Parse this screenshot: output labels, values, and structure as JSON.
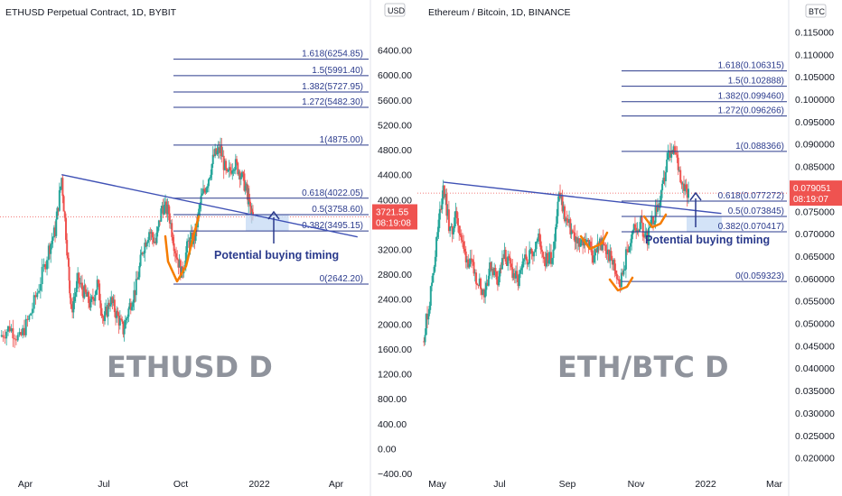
{
  "chart_data": [
    {
      "type": "candlestick",
      "title": "ETHUSD Perpetual Contract, 1D, BYBIT",
      "currency": "USD",
      "watermark": "ETHUSD D",
      "annotation": "Potential buying timing",
      "ylim": [
        -400,
        6800
      ],
      "yticks": [
        -400,
        0,
        400,
        800,
        1200,
        1600,
        2000,
        2400,
        2800,
        3200,
        3600,
        4000,
        4400,
        4800,
        5200,
        5600,
        6000,
        6400
      ],
      "ytick_labels": [
        "−400.00",
        "0.00",
        "400.00",
        "800.00",
        "1200.00",
        "1600.00",
        "2000.00",
        "2400.00",
        "2800.00",
        "3200.00",
        "3600.00",
        "4000.00",
        "4400.00",
        "4800.00",
        "5200.00",
        "5600.00",
        "6000.00",
        "6400.00"
      ],
      "x_labels": [
        "Apr",
        "Jul",
        "Oct",
        "2022",
        "Apr"
      ],
      "current_price": {
        "value": 3721.55,
        "label": "3721.55",
        "timer": "08:19:08",
        "color": "#ef5350"
      },
      "fib_levels": [
        {
          "label": "1.618(6254.85)",
          "value": 6254.85
        },
        {
          "label": "1.5(5991.40)",
          "value": 5991.4
        },
        {
          "label": "1.382(5727.95)",
          "value": 5727.95
        },
        {
          "label": "1.272(5482.30)",
          "value": 5482.3
        },
        {
          "label": "1(4875.00)",
          "value": 4875.0
        },
        {
          "label": "0.618(4022.05)",
          "value": 4022.05
        },
        {
          "label": "0.5(3758.60)",
          "value": 3758.6
        },
        {
          "label": "0.382(3495.15)",
          "value": 3495.15
        },
        {
          "label": "0(2642.20)",
          "value": 2642.2
        }
      ],
      "trendline": [
        [
          0.19,
          4400
        ],
        [
          0.97,
          3400
        ]
      ],
      "price_path": [
        [
          0.0,
          1800
        ],
        [
          0.03,
          1950
        ],
        [
          0.06,
          1750
        ],
        [
          0.09,
          2100
        ],
        [
          0.12,
          2600
        ],
        [
          0.15,
          3200
        ],
        [
          0.17,
          3500
        ],
        [
          0.19,
          4350
        ],
        [
          0.21,
          3000
        ],
        [
          0.22,
          2200
        ],
        [
          0.24,
          2700
        ],
        [
          0.26,
          2500
        ],
        [
          0.28,
          2300
        ],
        [
          0.3,
          2650
        ],
        [
          0.32,
          2050
        ],
        [
          0.34,
          2400
        ],
        [
          0.36,
          2150
        ],
        [
          0.38,
          1900
        ],
        [
          0.4,
          2300
        ],
        [
          0.42,
          2600
        ],
        [
          0.44,
          3200
        ],
        [
          0.46,
          3500
        ],
        [
          0.48,
          3300
        ],
        [
          0.5,
          3900
        ],
        [
          0.52,
          3800
        ],
        [
          0.54,
          3200
        ],
        [
          0.56,
          2800
        ],
        [
          0.58,
          3300
        ],
        [
          0.6,
          3400
        ],
        [
          0.62,
          4000
        ],
        [
          0.64,
          4300
        ],
        [
          0.66,
          4700
        ],
        [
          0.68,
          4800
        ],
        [
          0.7,
          4350
        ],
        [
          0.72,
          4600
        ],
        [
          0.74,
          4450
        ],
        [
          0.76,
          4150
        ],
        [
          0.77,
          3900
        ],
        [
          0.78,
          3720
        ]
      ],
      "colors": {
        "up": "#26a69a",
        "down": "#ef5350",
        "fib": "#2a3a8c",
        "trend": "#3f51b5",
        "curve": "#f57c00",
        "zone": "#c8dcf5"
      }
    },
    {
      "type": "candlestick",
      "title": "Ethereum / Bitcoin, 1D, BINANCE",
      "currency": "BTC",
      "watermark": "ETH/BTC D",
      "annotation": "Potential buying timing",
      "ylim": [
        0.0165,
        0.1165
      ],
      "yticks": [
        0.02,
        0.025,
        0.03,
        0.035,
        0.04,
        0.045,
        0.05,
        0.055,
        0.06,
        0.065,
        0.07,
        0.075,
        0.08,
        0.085,
        0.09,
        0.095,
        0.1,
        0.105,
        0.11,
        0.115
      ],
      "ytick_labels": [
        "0.020000",
        "0.025000",
        "0.030000",
        "0.035000",
        "0.040000",
        "0.045000",
        "0.050000",
        "0.055000",
        "0.060000",
        "0.065000",
        "0.070000",
        "0.075000",
        "0.080000",
        "0.085000",
        "0.090000",
        "0.095000",
        "0.100000",
        "0.105000",
        "0.110000",
        "0.115000"
      ],
      "x_labels": [
        "May",
        "Jul",
        "Sep",
        "Nov",
        "2022",
        "Mar"
      ],
      "current_price": {
        "value": 0.079051,
        "label": "0.079051",
        "timer": "08:19:07",
        "color": "#ef5350"
      },
      "fib_levels": [
        {
          "label": "1.618(0.106315)",
          "value": 0.106315
        },
        {
          "label": "1.5(0.102888)",
          "value": 0.102888
        },
        {
          "label": "1.382(0.099460)",
          "value": 0.09946
        },
        {
          "label": "1.272(0.096266)",
          "value": 0.096266
        },
        {
          "label": "1(0.088366)",
          "value": 0.088366
        },
        {
          "label": "0.618(0.077272)",
          "value": 0.077272
        },
        {
          "label": "0.5(0.073845)",
          "value": 0.073845
        },
        {
          "label": "0.382(0.070417)",
          "value": 0.070417
        },
        {
          "label": "0(0.059323)",
          "value": 0.059323
        }
      ],
      "trendline": [
        [
          0.06,
          0.0815
        ],
        [
          0.82,
          0.0745
        ]
      ],
      "price_path": [
        [
          0.0,
          0.046
        ],
        [
          0.02,
          0.055
        ],
        [
          0.04,
          0.068
        ],
        [
          0.06,
          0.081
        ],
        [
          0.08,
          0.07
        ],
        [
          0.1,
          0.074
        ],
        [
          0.12,
          0.066
        ],
        [
          0.14,
          0.063
        ],
        [
          0.16,
          0.06
        ],
        [
          0.18,
          0.057
        ],
        [
          0.2,
          0.063
        ],
        [
          0.22,
          0.06
        ],
        [
          0.24,
          0.065
        ],
        [
          0.26,
          0.062
        ],
        [
          0.28,
          0.059
        ],
        [
          0.3,
          0.064
        ],
        [
          0.32,
          0.066
        ],
        [
          0.34,
          0.069
        ],
        [
          0.36,
          0.064
        ],
        [
          0.38,
          0.065
        ],
        [
          0.4,
          0.079
        ],
        [
          0.42,
          0.073
        ],
        [
          0.44,
          0.07
        ],
        [
          0.46,
          0.067
        ],
        [
          0.48,
          0.069
        ],
        [
          0.5,
          0.065
        ],
        [
          0.52,
          0.068
        ],
        [
          0.54,
          0.066
        ],
        [
          0.56,
          0.063
        ],
        [
          0.58,
          0.059
        ],
        [
          0.6,
          0.066
        ],
        [
          0.62,
          0.071
        ],
        [
          0.64,
          0.072
        ],
        [
          0.66,
          0.069
        ],
        [
          0.68,
          0.074
        ],
        [
          0.7,
          0.078
        ],
        [
          0.72,
          0.087
        ],
        [
          0.74,
          0.088
        ],
        [
          0.76,
          0.082
        ],
        [
          0.78,
          0.079
        ]
      ],
      "colors": {
        "up": "#26a69a",
        "down": "#ef5350",
        "fib": "#2a3a8c",
        "trend": "#3f51b5",
        "curve": "#f57c00",
        "zone": "#c8dcf5"
      }
    }
  ]
}
